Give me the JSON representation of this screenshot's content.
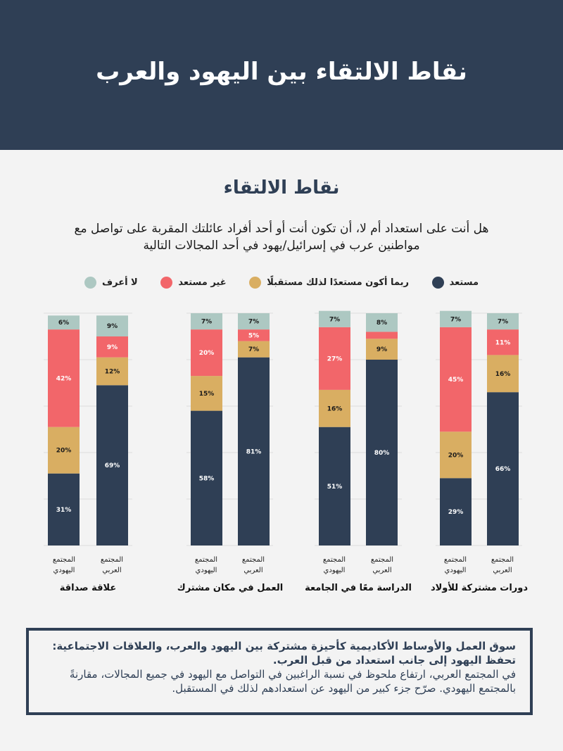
{
  "header": {
    "title": "نقاط الالتقاء بين اليهود والعرب"
  },
  "section": {
    "subtitle": "نقاط الالتقاء",
    "question": "هل أنت على استعداد أم لا، أن تكون أنت أو أحد أفراد عائلتك المقربة على تواصل مع مواطنين عرب في إسرائيل/يهود في أحد المجالات التالية"
  },
  "legend": [
    {
      "label": "لا أعرف",
      "color": "#adc8c2"
    },
    {
      "label": "غير مستعد",
      "color": "#f2666a"
    },
    {
      "label": "ربما أكون مستعدًا لذلك مستقبلًا",
      "color": "#d9ae62"
    },
    {
      "label": "مستعد",
      "color": "#2f3f55"
    }
  ],
  "chart_data": {
    "type": "bar",
    "stacked": true,
    "ylim": [
      0,
      100
    ],
    "grid": true,
    "legend_position": "top",
    "series_order_bottom_to_top": [
      "مستعد",
      "ربما أكون مستعدًا لذلك مستقبلًا",
      "غير مستعد",
      "لا أعرف"
    ],
    "groups": [
      {
        "label": "علاقة صداقة",
        "bars": [
          {
            "label_line1": "المجتمع",
            "label_line2": "اليهودي",
            "values": [
              31,
              20,
              42,
              6
            ],
            "labels": [
              "31%",
              "20%",
              "42%",
              "6%"
            ]
          },
          {
            "label_line1": "المجتمع",
            "label_line2": "العربي",
            "values": [
              69,
              12,
              9,
              9
            ],
            "labels": [
              "69%",
              "12%",
              "9%",
              "9%"
            ]
          }
        ]
      },
      {
        "label": "العمل في مكان مشترك",
        "bars": [
          {
            "label_line1": "المجتمع",
            "label_line2": "اليهودي",
            "values": [
              58,
              15,
              20,
              7
            ],
            "labels": [
              "58%",
              "15%",
              "20%",
              "7%"
            ]
          },
          {
            "label_line1": "المجتمع",
            "label_line2": "العربي",
            "values": [
              81,
              7,
              5,
              7
            ],
            "labels": [
              "81%",
              "7%",
              "5%",
              "7%"
            ]
          }
        ]
      },
      {
        "label": "الدراسة معًا في الجامعة",
        "bars": [
          {
            "label_line1": "المجتمع",
            "label_line2": "اليهودي",
            "values": [
              51,
              16,
              27,
              7
            ],
            "labels": [
              "51%",
              "16%",
              "27%",
              "7%"
            ]
          },
          {
            "label_line1": "المجتمع",
            "label_line2": "العربي",
            "values": [
              80,
              9,
              3,
              8
            ],
            "labels": [
              "80%",
              "9%",
              "",
              "8%"
            ]
          }
        ]
      },
      {
        "label": "دورات مشتركة للأولاد",
        "bars": [
          {
            "label_line1": "المجتمع",
            "label_line2": "اليهودي",
            "values": [
              29,
              20,
              45,
              7
            ],
            "labels": [
              "29%",
              "20%",
              "45%",
              "7%"
            ]
          },
          {
            "label_line1": "المجتمع",
            "label_line2": "العربي",
            "values": [
              66,
              16,
              11,
              7
            ],
            "labels": [
              "66%",
              "16%",
              "11%",
              "7%"
            ]
          }
        ]
      }
    ]
  },
  "note": {
    "bold_line": "سوق العمل والأوساط الأكاديمية كأحيزة  مشتركة بين اليهود والعرب، والعلاقات الاجتماعية: تحفظ اليهود إلى جانب استعداد من قبل العرب.",
    "text": "في المجتمع العربي، ارتفاع ملحوظ في نسبة الراغبين في التواصل مع اليهود في جميع المجالات، مقارنةً بالمجتمع اليهودي. صرّح جزء كبير من اليهود عن استعدادهم لذلك في المستقبل."
  }
}
